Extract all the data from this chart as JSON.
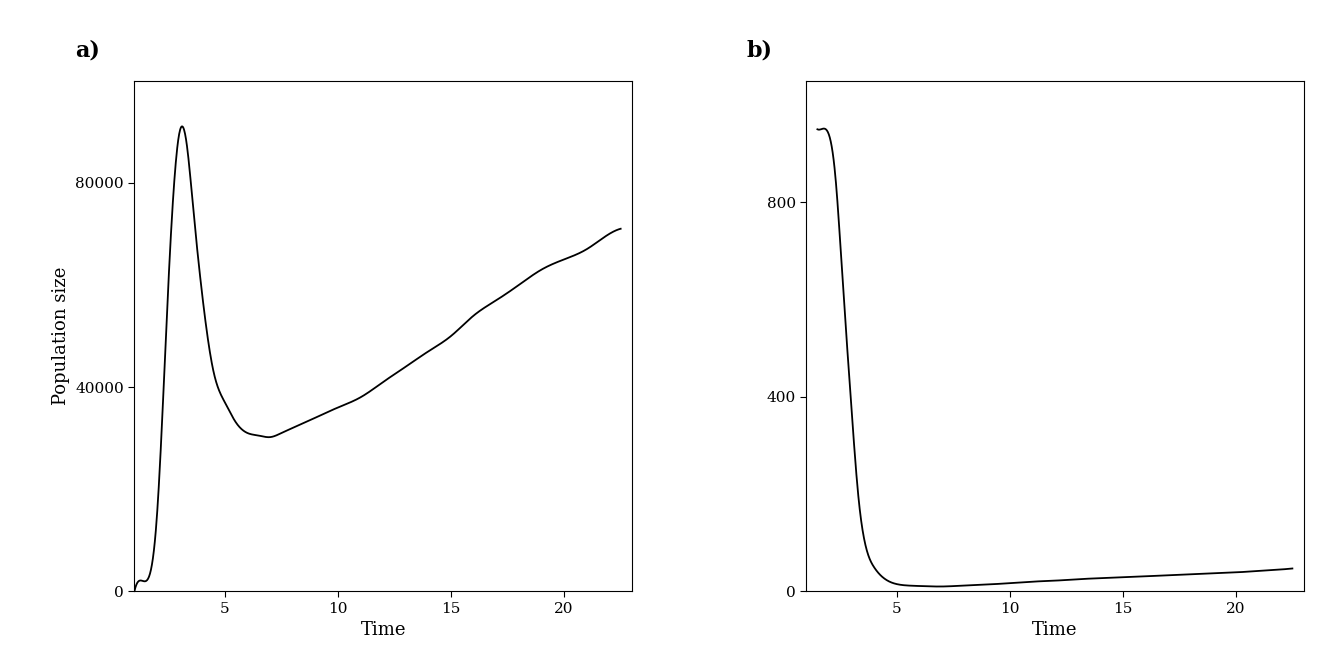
{
  "panel_a_label": "a)",
  "panel_b_label": "b)",
  "xlabel": "Time",
  "ylabel": "Population size",
  "background_color": "#ffffff",
  "line_color": "#000000",
  "line_width": 1.3,
  "font_size_label": 13,
  "font_size_axis": 11,
  "panel_a_yticks": [
    0,
    40000,
    80000
  ],
  "panel_b_yticks": [
    0,
    400,
    800
  ],
  "xticks": [
    5,
    10,
    15,
    20
  ],
  "panel_a_xlim": [
    1,
    23
  ],
  "panel_b_xlim": [
    1,
    23
  ],
  "panel_a_ylim": [
    0,
    100000
  ],
  "panel_b_ylim": [
    0,
    1050
  ],
  "panel_a_x": [
    1,
    1.5,
    2,
    2.5,
    3,
    3.3,
    3.6,
    4,
    4.5,
    5,
    5.5,
    6,
    6.5,
    7,
    7.5,
    8,
    9,
    10,
    11,
    12,
    13,
    14,
    15,
    16,
    17,
    18,
    19,
    20,
    21,
    22,
    22.5
  ],
  "panel_a_y": [
    0,
    2000,
    15000,
    60000,
    90000,
    88000,
    75000,
    58000,
    43000,
    37000,
    33000,
    31000,
    30500,
    30200,
    31000,
    32000,
    34000,
    36000,
    38000,
    41000,
    44000,
    47000,
    50000,
    54000,
    57000,
    60000,
    63000,
    65000,
    67000,
    70000,
    71000
  ],
  "panel_b_x": [
    1.5,
    2,
    2.3,
    2.6,
    3,
    3.3,
    3.6,
    4,
    4.5,
    5,
    5.5,
    6,
    7,
    8,
    9,
    10,
    11,
    12,
    13,
    14,
    15,
    16,
    17,
    18,
    19,
    20,
    21,
    22,
    22.5
  ],
  "panel_b_y": [
    950,
    940,
    850,
    650,
    380,
    200,
    100,
    50,
    25,
    15,
    12,
    11,
    10,
    12,
    14,
    17,
    20,
    22,
    25,
    27,
    29,
    31,
    33,
    35,
    37,
    39,
    42,
    45,
    47
  ]
}
